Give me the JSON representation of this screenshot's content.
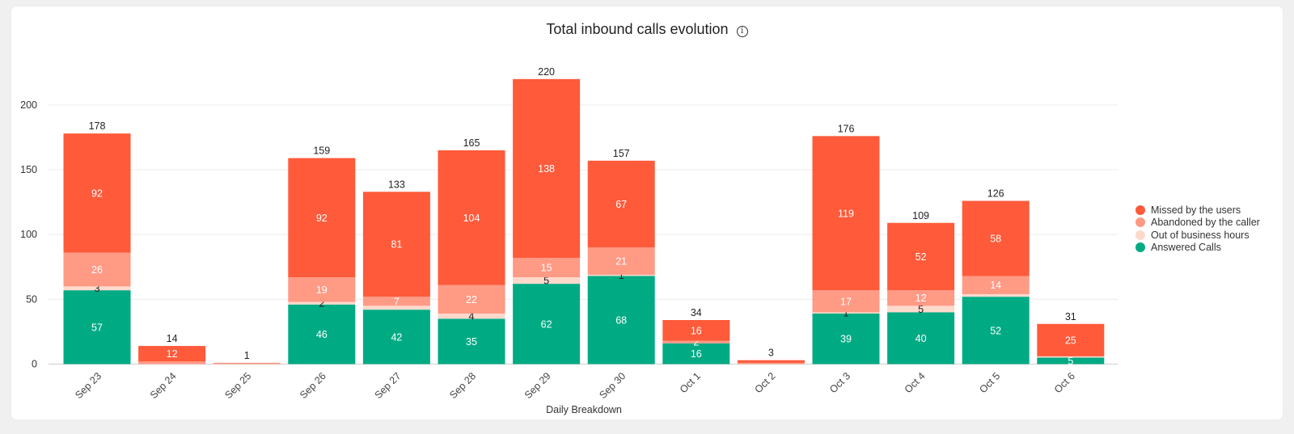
{
  "chart_data": {
    "type": "bar",
    "stacked": true,
    "title": "Total inbound calls evolution",
    "xlabel": "Daily Breakdown",
    "ylabel": "",
    "ylim": [
      0,
      230
    ],
    "yticks": [
      0,
      50,
      100,
      150,
      200
    ],
    "grid": true,
    "legend_position": "right",
    "categories": [
      "Sep 23",
      "Sep 24",
      "Sep 25",
      "Sep 26",
      "Sep 27",
      "Sep 28",
      "Sep 29",
      "Sep 30",
      "Oct 1",
      "Oct 2",
      "Oct 3",
      "Oct 4",
      "Oct 5",
      "Oct 6"
    ],
    "series": [
      {
        "name": "Answered Calls",
        "color": "#00ab84",
        "labelColor": "#ffffff",
        "values": [
          57,
          0,
          0,
          46,
          42,
          35,
          62,
          68,
          16,
          0,
          39,
          40,
          52,
          5
        ]
      },
      {
        "name": "Out of business hours",
        "color": "#fdd9cc",
        "labelColor": "#222222",
        "values": [
          3,
          0,
          0,
          2,
          3,
          4,
          5,
          1,
          0,
          0,
          1,
          5,
          2,
          1
        ]
      },
      {
        "name": "Abandoned by the caller",
        "color": "#ff9a85",
        "labelColor": "#ffffff",
        "values": [
          26,
          2,
          1,
          19,
          7,
          22,
          15,
          21,
          2,
          1,
          17,
          12,
          14,
          0
        ]
      },
      {
        "name": "Missed by the users",
        "color": "#ff5a3a",
        "labelColor": "#ffffff",
        "values": [
          92,
          12,
          0,
          92,
          81,
          104,
          138,
          67,
          16,
          2,
          119,
          52,
          58,
          25
        ]
      }
    ],
    "totals": [
      178,
      14,
      1,
      159,
      133,
      165,
      220,
      157,
      34,
      3,
      176,
      109,
      126,
      31
    ],
    "segment_labels": {
      "Answered Calls": [
        57,
        null,
        null,
        46,
        42,
        35,
        62,
        68,
        16,
        null,
        39,
        40,
        52,
        5
      ],
      "Out of business hours": [
        3,
        null,
        null,
        2,
        null,
        4,
        5,
        1,
        null,
        null,
        1,
        5,
        null,
        null
      ],
      "Abandoned by the caller": [
        26,
        null,
        null,
        19,
        7,
        22,
        15,
        21,
        2,
        null,
        17,
        12,
        14,
        null
      ],
      "Missed by the users": [
        92,
        12,
        null,
        92,
        81,
        104,
        138,
        67,
        16,
        null,
        119,
        52,
        58,
        25
      ]
    },
    "legend_order": [
      "Missed by the users",
      "Abandoned by the caller",
      "Out of business hours",
      "Answered Calls"
    ]
  }
}
